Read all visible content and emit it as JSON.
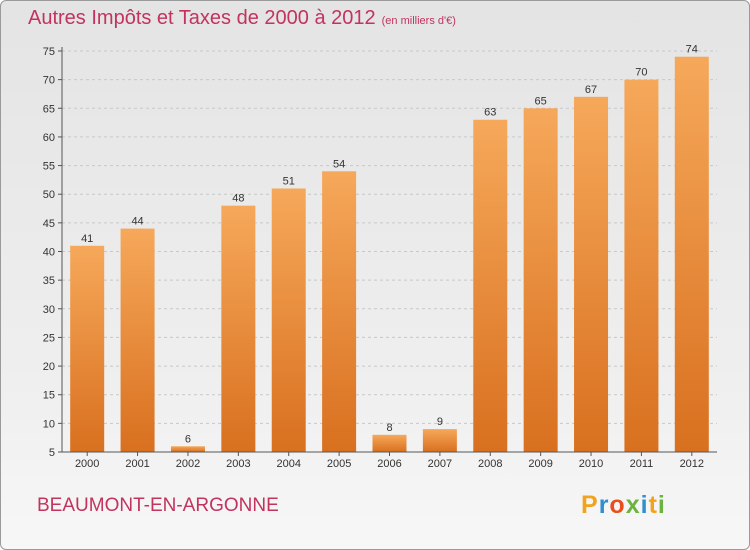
{
  "title": "Autres Impôts et Taxes de 2000 à 2012",
  "unit": "(en milliers d'€)",
  "place": "BEAUMONT-EN-ARGONNE",
  "logo": {
    "letters": [
      "P",
      "r",
      "o",
      "x",
      "i",
      "t",
      "i"
    ],
    "colors": [
      "#f2a31b",
      "#2e8fcf",
      "#e94e1b",
      "#6cb33f",
      "#2e8fcf",
      "#f2a31b",
      "#6cb33f"
    ]
  },
  "colors": {
    "title": "#c2335e",
    "bar_light": "#f6a85a",
    "bar_dark": "#d8701f",
    "axis": "#555555",
    "grid": "#c8c8c8"
  },
  "chart_data": {
    "type": "bar",
    "categories": [
      "2000",
      "2001",
      "2002",
      "2003",
      "2004",
      "2005",
      "2006",
      "2007",
      "2008",
      "2009",
      "2010",
      "2011",
      "2012"
    ],
    "values": [
      41,
      44,
      6,
      48,
      51,
      54,
      8,
      9,
      63,
      65,
      67,
      70,
      74
    ],
    "ylim": [
      5,
      75
    ],
    "yticks": [
      5,
      10,
      15,
      20,
      25,
      30,
      35,
      40,
      45,
      50,
      55,
      60,
      65,
      70,
      75
    ],
    "grid": true
  }
}
